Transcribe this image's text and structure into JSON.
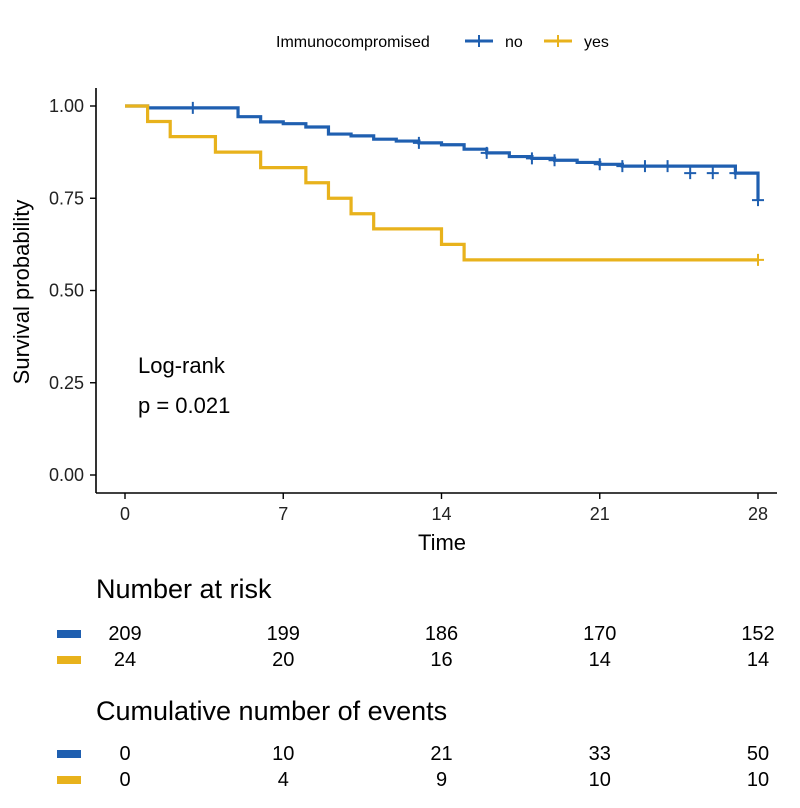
{
  "chart_data": {
    "type": "line",
    "subtype": "kaplan-meier",
    "title": "",
    "xlabel": "Time",
    "ylabel": "Survival probability",
    "xlim": [
      0,
      28
    ],
    "ylim": [
      0,
      1
    ],
    "x_ticks": [
      "0",
      "7",
      "14",
      "21",
      "28"
    ],
    "y_ticks": [
      "0.00",
      "0.25",
      "0.50",
      "0.75",
      "1.00"
    ],
    "grid": false,
    "legend": {
      "title": "Immunocompromised",
      "position": "top",
      "entries": [
        {
          "label": "no",
          "color": "#1f5fb0"
        },
        {
          "label": "yes",
          "color": "#e8b21c"
        }
      ]
    },
    "annotation": [
      "Log-rank",
      "p = 0.021"
    ],
    "series": [
      {
        "name": "no",
        "color": "#1f5fb0",
        "steps": [
          [
            0,
            1.0
          ],
          [
            1,
            0.995
          ],
          [
            5,
            0.971
          ],
          [
            6,
            0.957
          ],
          [
            7,
            0.952
          ],
          [
            8,
            0.943
          ],
          [
            9,
            0.924
          ],
          [
            10,
            0.919
          ],
          [
            11,
            0.91
          ],
          [
            12,
            0.905
          ],
          [
            13,
            0.9
          ],
          [
            14,
            0.895
          ],
          [
            15,
            0.883
          ],
          [
            16,
            0.873
          ],
          [
            17,
            0.863
          ],
          [
            18,
            0.858
          ],
          [
            19,
            0.853
          ],
          [
            20,
            0.847
          ],
          [
            21,
            0.842
          ],
          [
            22,
            0.837
          ],
          [
            27,
            0.818
          ],
          [
            28,
            0.745
          ]
        ],
        "end": 28,
        "censor_marks": [
          [
            3,
            0.995
          ],
          [
            13,
            0.9
          ],
          [
            16,
            0.873
          ],
          [
            18,
            0.858
          ],
          [
            19,
            0.853
          ],
          [
            21,
            0.842
          ],
          [
            22,
            0.837
          ],
          [
            23,
            0.837
          ],
          [
            24,
            0.837
          ],
          [
            25,
            0.818
          ],
          [
            26,
            0.818
          ],
          [
            27,
            0.818
          ],
          [
            28,
            0.745
          ]
        ]
      },
      {
        "name": "yes",
        "color": "#e8b21c",
        "steps": [
          [
            0,
            1.0
          ],
          [
            1,
            0.958
          ],
          [
            2,
            0.917
          ],
          [
            4,
            0.875
          ],
          [
            6,
            0.833
          ],
          [
            8,
            0.792
          ],
          [
            9,
            0.75
          ],
          [
            10,
            0.708
          ],
          [
            11,
            0.667
          ],
          [
            14,
            0.625
          ],
          [
            15,
            0.583
          ]
        ],
        "end": 28,
        "censor_marks": [
          [
            28,
            0.583
          ]
        ]
      }
    ]
  },
  "risk_table": {
    "title": "Number at risk",
    "rows": [
      {
        "color": "#1f5fb0",
        "values": [
          "209",
          "199",
          "186",
          "170",
          "152"
        ]
      },
      {
        "color": "#e8b21c",
        "values": [
          "24",
          "20",
          "16",
          "14",
          "14"
        ]
      }
    ]
  },
  "events_table": {
    "title": "Cumulative number of events",
    "rows": [
      {
        "color": "#1f5fb0",
        "values": [
          "0",
          "10",
          "21",
          "33",
          "50"
        ]
      },
      {
        "color": "#e8b21c",
        "values": [
          "0",
          "4",
          "9",
          "10",
          "10"
        ]
      }
    ]
  }
}
